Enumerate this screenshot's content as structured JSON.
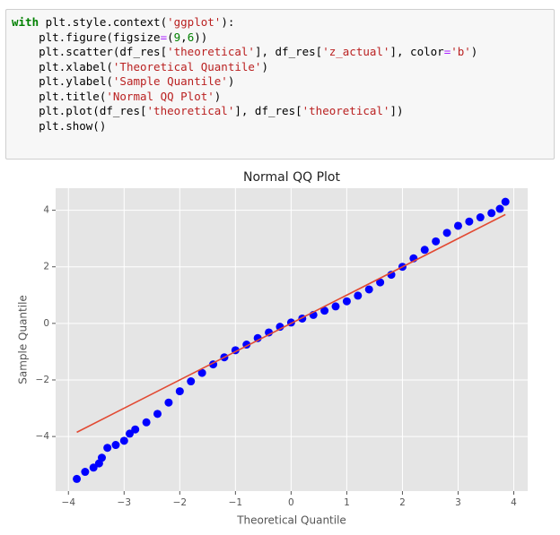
{
  "code": {
    "lines": [
      [
        {
          "text": "with",
          "color": "#008000",
          "bold": true
        },
        {
          "text": " plt.style.context(",
          "color": "#000000"
        },
        {
          "text": "'ggplot'",
          "color": "#BA2121"
        },
        {
          "text": "):",
          "color": "#000000"
        }
      ],
      [
        {
          "text": "    plt.figure(figsize",
          "color": "#000000"
        },
        {
          "text": "=",
          "color": "#AA22FF"
        },
        {
          "text": "(",
          "color": "#000000"
        },
        {
          "text": "9",
          "color": "#008000"
        },
        {
          "text": ",",
          "color": "#000000"
        },
        {
          "text": "6",
          "color": "#008000"
        },
        {
          "text": "))",
          "color": "#000000"
        }
      ],
      [
        {
          "text": "    plt.scatter(df_res[",
          "color": "#000000"
        },
        {
          "text": "'theoretical'",
          "color": "#BA2121"
        },
        {
          "text": "], df_res[",
          "color": "#000000"
        },
        {
          "text": "'z_actual'",
          "color": "#BA2121"
        },
        {
          "text": "], color",
          "color": "#000000"
        },
        {
          "text": "=",
          "color": "#AA22FF"
        },
        {
          "text": "'b'",
          "color": "#BA2121"
        },
        {
          "text": ")",
          "color": "#000000"
        }
      ],
      [
        {
          "text": "    plt.xlabel(",
          "color": "#000000"
        },
        {
          "text": "'Theoretical Quantile'",
          "color": "#BA2121"
        },
        {
          "text": ")",
          "color": "#000000"
        }
      ],
      [
        {
          "text": "    plt.ylabel(",
          "color": "#000000"
        },
        {
          "text": "'Sample Quantile'",
          "color": "#BA2121"
        },
        {
          "text": ")",
          "color": "#000000"
        }
      ],
      [
        {
          "text": "    plt.title(",
          "color": "#000000"
        },
        {
          "text": "'Normal QQ Plot'",
          "color": "#BA2121"
        },
        {
          "text": ")",
          "color": "#000000"
        }
      ],
      [
        {
          "text": "    plt.plot(df_res[",
          "color": "#000000"
        },
        {
          "text": "'theoretical'",
          "color": "#BA2121"
        },
        {
          "text": "], df_res[",
          "color": "#000000"
        },
        {
          "text": "'theoretical'",
          "color": "#BA2121"
        },
        {
          "text": "])",
          "color": "#000000"
        }
      ],
      [
        {
          "text": "    plt.show()",
          "color": "#000000"
        }
      ]
    ]
  },
  "chart_data": {
    "type": "scatter",
    "title": "Normal QQ Plot",
    "x_label": "Theoretical Quantile",
    "y_label": "Sample Quantile",
    "xlim": [
      -4.23,
      4.25
    ],
    "ylim": [
      -5.93,
      4.78
    ],
    "grid": true,
    "xticks": [
      {
        "value": -4,
        "label": "−4"
      },
      {
        "value": -3,
        "label": "−3"
      },
      {
        "value": -2,
        "label": "−2"
      },
      {
        "value": -1,
        "label": "−1"
      },
      0,
      1,
      2,
      3,
      4
    ],
    "yticks": [
      {
        "value": -4,
        "label": "−4"
      },
      {
        "value": -2,
        "label": "−2"
      },
      0,
      2,
      4
    ],
    "series": [
      {
        "type": "scatter",
        "color": "#0000ff",
        "x": [
          -3.85,
          -3.7,
          -3.55,
          -3.45,
          -3.4,
          -3.3,
          -3.15,
          -3.0,
          -2.9,
          -2.8,
          -2.6,
          -2.4,
          -2.2,
          -2.0,
          -1.8,
          -1.6,
          -1.4,
          -1.2,
          -1.0,
          -0.8,
          -0.6,
          -0.4,
          -0.2,
          0,
          0.2,
          0.4,
          0.6,
          0.8,
          1.0,
          1.2,
          1.4,
          1.6,
          1.8,
          2.0,
          2.2,
          2.4,
          2.6,
          2.8,
          3.0,
          3.2,
          3.4,
          3.6,
          3.75,
          3.85
        ],
        "y": [
          -5.5,
          -5.25,
          -5.1,
          -4.95,
          -4.75,
          -4.4,
          -4.3,
          -4.15,
          -3.9,
          -3.75,
          -3.5,
          -3.2,
          -2.8,
          -2.4,
          -2.05,
          -1.75,
          -1.45,
          -1.2,
          -0.95,
          -0.75,
          -0.52,
          -0.32,
          -0.12,
          0.03,
          0.17,
          0.3,
          0.45,
          0.6,
          0.78,
          0.98,
          1.2,
          1.45,
          1.72,
          2.0,
          2.3,
          2.6,
          2.9,
          3.2,
          3.45,
          3.6,
          3.75,
          3.9,
          4.05,
          4.3
        ]
      },
      {
        "type": "line",
        "color": "#E24A33",
        "x": [
          -3.85,
          3.85
        ],
        "y": [
          -3.85,
          3.85
        ]
      }
    ]
  }
}
